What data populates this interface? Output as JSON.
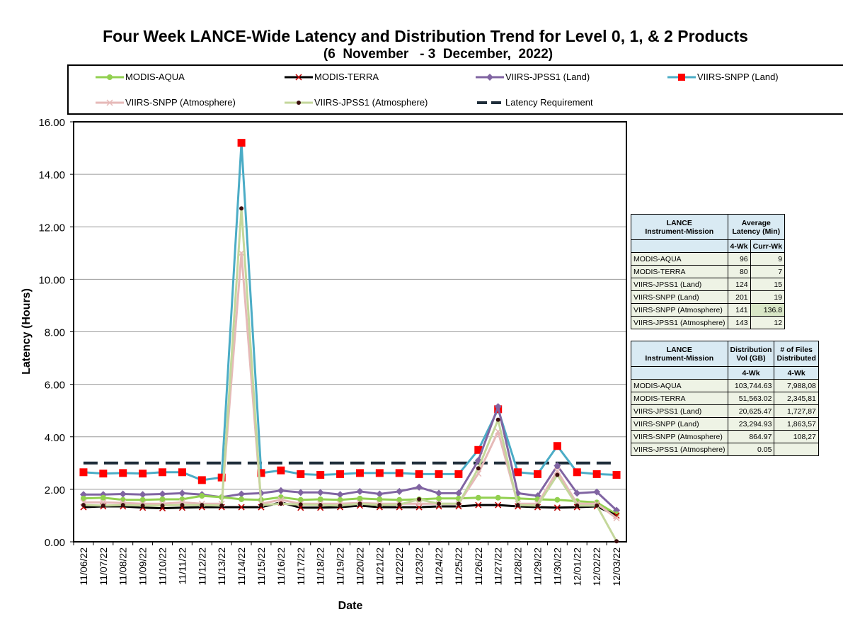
{
  "header": {
    "title": "Four Week LANCE-Wide Latency and Distribution Trend for Level 0, 1, & 2 Products",
    "subtitle": "(6  November   - 3  December,  2022)"
  },
  "legend": [
    {
      "label": "MODIS-AQUA",
      "color": "#92d050",
      "marker": "circle"
    },
    {
      "label": "MODIS-TERRA",
      "color": "#000000",
      "marker": "x"
    },
    {
      "label": "VIIRS-JPSS1 (Land)",
      "color": "#8064a2",
      "marker": "diamond"
    },
    {
      "label": "VIIRS-SNPP (Land)",
      "color": "#4bacc6",
      "marker": "square"
    },
    {
      "label": "VIIRS-SNPP (Atmosphere)",
      "color": "#e6b9b8",
      "marker": "x"
    },
    {
      "label": "VIIRS-JPSS1 (Atmosphere)",
      "color": "#c4d79b",
      "marker": "dot"
    },
    {
      "label": "Latency Requirement",
      "color": "#1f2d3a",
      "marker": "dash"
    }
  ],
  "chart_data": {
    "type": "line",
    "xlabel": "Date",
    "ylabel": "Latency (Hours)",
    "ylim": [
      0,
      16
    ],
    "yticks": [
      "0.00",
      "2.00",
      "4.00",
      "6.00",
      "8.00",
      "10.00",
      "12.00",
      "14.00",
      "16.00"
    ],
    "grid": true,
    "legend_position": "top",
    "x": [
      "11/06/22",
      "11/07/22",
      "11/08/22",
      "11/09/22",
      "11/10/22",
      "11/11/22",
      "11/12/22",
      "11/13/22",
      "11/14/22",
      "11/15/22",
      "11/16/22",
      "11/17/22",
      "11/18/22",
      "11/19/22",
      "11/20/22",
      "11/21/22",
      "11/22/22",
      "11/23/22",
      "11/24/22",
      "11/25/22",
      "11/26/22",
      "11/27/22",
      "11/28/22",
      "11/29/22",
      "11/30/22",
      "12/01/22",
      "12/02/22",
      "12/03/22"
    ],
    "series": [
      {
        "name": "MODIS-AQUA",
        "values": [
          1.65,
          1.68,
          1.6,
          1.6,
          1.62,
          1.62,
          1.75,
          1.7,
          1.62,
          1.6,
          1.7,
          1.6,
          1.62,
          1.6,
          1.65,
          1.62,
          1.6,
          1.62,
          1.65,
          1.65,
          1.68,
          1.68,
          1.65,
          1.62,
          1.6,
          1.55,
          1.5,
          1.05
        ]
      },
      {
        "name": "MODIS-TERRA",
        "values": [
          1.32,
          1.35,
          1.35,
          1.3,
          1.28,
          1.3,
          1.32,
          1.32,
          1.32,
          1.32,
          1.5,
          1.3,
          1.3,
          1.32,
          1.38,
          1.32,
          1.32,
          1.32,
          1.35,
          1.35,
          1.4,
          1.4,
          1.35,
          1.32,
          1.3,
          1.32,
          1.35,
          1.0
        ]
      },
      {
        "name": "VIIRS-JPSS1 (Land)",
        "values": [
          1.8,
          1.8,
          1.82,
          1.8,
          1.82,
          1.85,
          1.8,
          1.7,
          1.82,
          1.85,
          1.95,
          1.88,
          1.88,
          1.8,
          1.92,
          1.82,
          1.92,
          2.08,
          1.85,
          1.85,
          3.1,
          5.15,
          1.85,
          1.75,
          2.9,
          1.85,
          1.9,
          1.2
        ]
      },
      {
        "name": "VIIRS-SNPP (Land)",
        "values": [
          2.65,
          2.6,
          2.62,
          2.6,
          2.65,
          2.65,
          2.35,
          2.45,
          15.2,
          2.62,
          2.72,
          2.58,
          2.55,
          2.58,
          2.62,
          2.62,
          2.62,
          2.58,
          2.58,
          2.58,
          3.5,
          5.05,
          2.65,
          2.58,
          3.65,
          2.65,
          2.58,
          2.55
        ]
      },
      {
        "name": "VIIRS-SNPP (Atmosphere)",
        "values": [
          1.5,
          1.5,
          1.48,
          1.45,
          1.45,
          1.5,
          1.45,
          1.45,
          11.0,
          1.45,
          1.6,
          1.45,
          1.45,
          1.45,
          1.48,
          1.45,
          1.45,
          1.45,
          1.45,
          1.45,
          2.6,
          4.2,
          1.45,
          1.45,
          2.7,
          1.45,
          1.45,
          0.9
        ]
      },
      {
        "name": "VIIRS-JPSS1 (Atmosphere)",
        "values": [
          1.4,
          1.38,
          1.4,
          1.38,
          1.38,
          1.4,
          1.4,
          1.38,
          12.7,
          1.4,
          1.45,
          1.42,
          1.4,
          1.38,
          1.45,
          1.4,
          1.42,
          1.62,
          1.45,
          1.45,
          2.8,
          4.65,
          1.4,
          1.38,
          2.55,
          1.38,
          1.38,
          0.02
        ]
      },
      {
        "name": "Latency Requirement",
        "values": [
          3,
          3,
          3,
          3,
          3,
          3,
          3,
          3,
          3,
          3,
          3,
          3,
          3,
          3,
          3,
          3,
          3,
          3,
          3,
          3,
          3,
          3,
          3,
          3,
          3,
          3,
          3,
          3
        ]
      }
    ]
  },
  "latency_table": {
    "header_mission": [
      "LANCE",
      "Instrument-Mission"
    ],
    "header_avg": [
      "Average",
      "Latency (Min)"
    ],
    "sub_headers": [
      "4-Wk",
      "Curr-Wk"
    ],
    "rows": [
      {
        "mission": "MODIS-AQUA",
        "four_wk": "96",
        "curr_wk": "9"
      },
      {
        "mission": "MODIS-TERRA",
        "four_wk": "80",
        "curr_wk": "7"
      },
      {
        "mission": "VIIRS-JPSS1 (Land)",
        "four_wk": "124",
        "curr_wk": "15"
      },
      {
        "mission": "VIIRS-SNPP (Land)",
        "four_wk": "201",
        "curr_wk": "19"
      },
      {
        "mission": "VIIRS-SNPP (Atmosphere)",
        "four_wk": "141",
        "curr_wk": "136.8"
      },
      {
        "mission": "VIIRS-JPSS1 (Atmosphere)",
        "four_wk": "143",
        "curr_wk": "12"
      }
    ]
  },
  "distribution_table": {
    "header_mission": [
      "LANCE",
      "Instrument-Mission"
    ],
    "header_vol": [
      "Distribution",
      "Vol (GB)"
    ],
    "header_files": [
      "# of Files",
      "Distributed"
    ],
    "sub_headers": [
      "4-Wk",
      "4-Wk"
    ],
    "rows": [
      {
        "mission": "MODIS-AQUA",
        "vol": "103,744.63",
        "files": "7,988,08"
      },
      {
        "mission": "MODIS-TERRA",
        "vol": "51,563.02",
        "files": "2,345,81"
      },
      {
        "mission": "VIIRS-JPSS1 (Land)",
        "vol": "20,625.47",
        "files": "1,727,87"
      },
      {
        "mission": "VIIRS-SNPP (Land)",
        "vol": "23,294.93",
        "files": "1,863,57"
      },
      {
        "mission": "VIIRS-SNPP (Atmosphere)",
        "vol": "864.97",
        "files": "108,27"
      },
      {
        "mission": "VIIRS-JPSS1 (Atmosphere)",
        "vol": "0.05",
        "files": ""
      }
    ]
  }
}
